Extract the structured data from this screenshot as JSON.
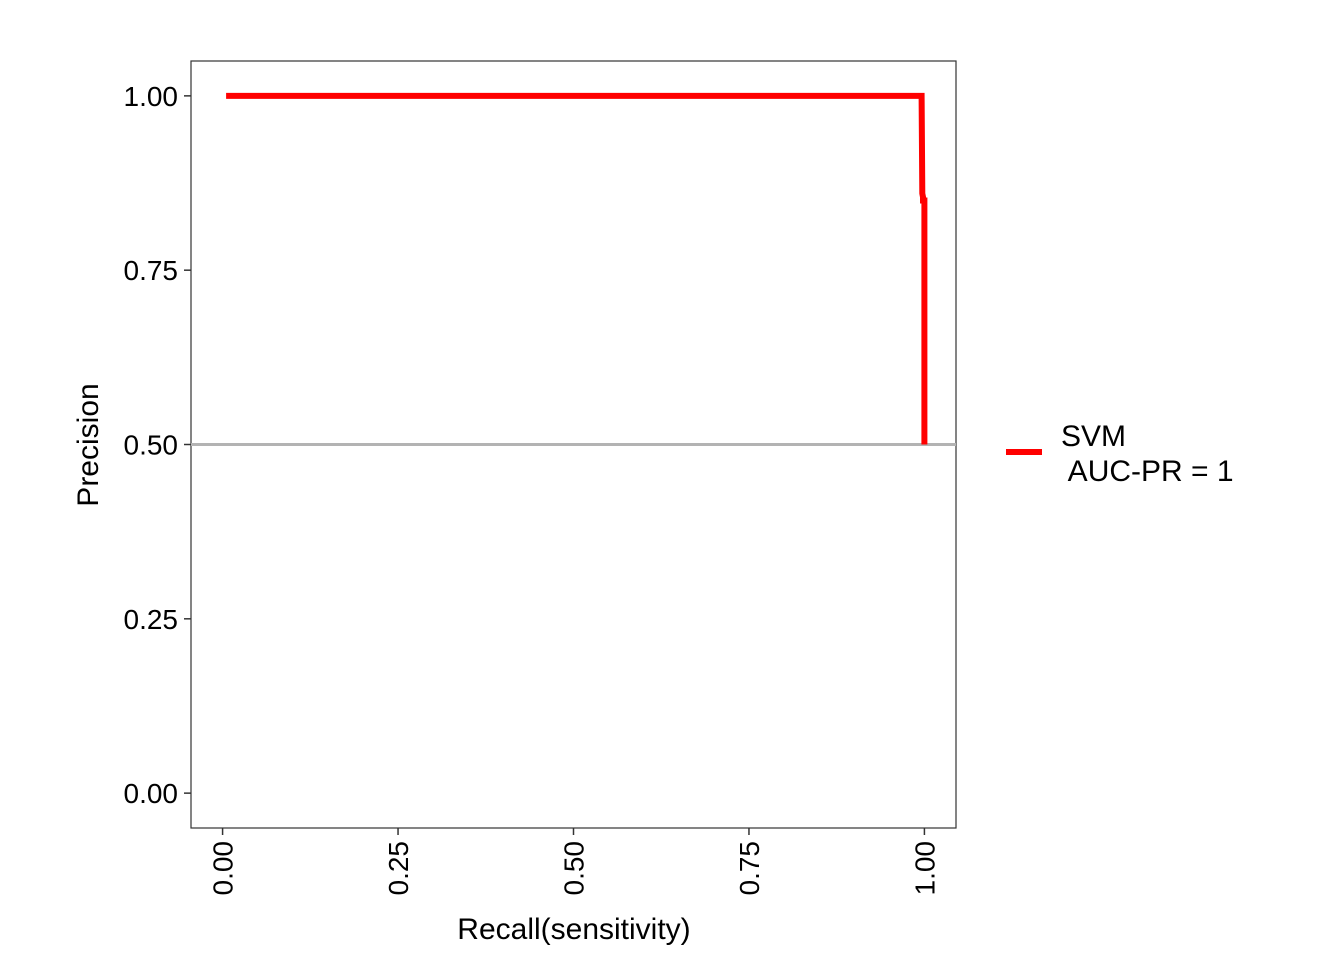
{
  "chart_data": {
    "type": "line",
    "title": "",
    "xlabel": "Recall(sensitivity)",
    "ylabel": "Precision",
    "xlim": [
      -0.045,
      1.045
    ],
    "ylim": [
      -0.05,
      1.05
    ],
    "x_ticks": [
      0,
      0.25,
      0.5,
      0.75,
      1
    ],
    "x_tick_labels": [
      "0.00",
      "0.25",
      "0.50",
      "0.75",
      "1.00"
    ],
    "y_ticks": [
      0,
      0.25,
      0.5,
      0.75,
      1
    ],
    "y_tick_labels": [
      "0.00",
      "0.25",
      "0.50",
      "0.75",
      "1.00"
    ],
    "grid": false,
    "legend_position": "right",
    "baseline": {
      "y": 0.5,
      "color": "#b3b3b3"
    },
    "series": [
      {
        "name": "SVM\n AUC-PR = 1",
        "color": "#ff0000",
        "points": [
          {
            "x": 0.005,
            "y": 1.0
          },
          {
            "x": 0.996,
            "y": 1.0
          },
          {
            "x": 0.997,
            "y": 0.86
          },
          {
            "x": 0.998,
            "y": 0.855
          },
          {
            "x": 0.998,
            "y": 0.85
          },
          {
            "x": 1.0,
            "y": 0.85
          },
          {
            "x": 1.0,
            "y": 0.5
          }
        ]
      }
    ],
    "legend": {
      "line1": "SVM",
      "line2": " AUC-PR = 1"
    }
  }
}
